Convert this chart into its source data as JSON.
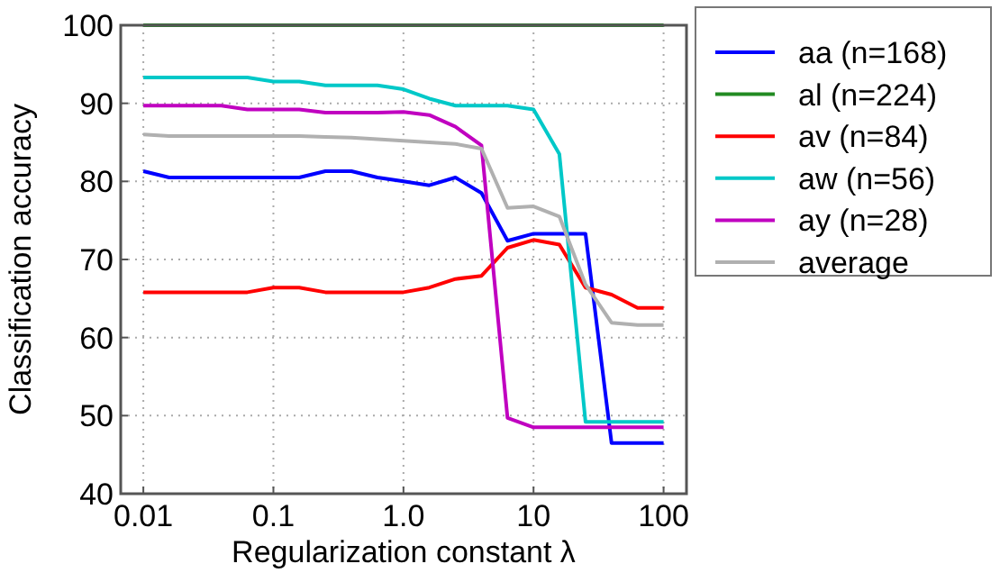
{
  "chart_data": {
    "type": "line",
    "xlabel": "Regularization constant λ",
    "ylabel": "Classification accuracy",
    "x": [
      0.01,
      0.0158,
      0.0251,
      0.0398,
      0.0631,
      0.1,
      0.158,
      0.251,
      0.398,
      0.631,
      1,
      1.58,
      2.51,
      3.98,
      6.31,
      10,
      15.8,
      25.1,
      39.8,
      63.1,
      100
    ],
    "log": "x",
    "xlim": [
      0.0067,
      150
    ],
    "ylim": [
      40,
      100
    ],
    "xticks": [
      0.01,
      0.1,
      {
        "value": 1,
        "label": "1.0"
      },
      10,
      100
    ],
    "yticks": [
      40,
      50,
      60,
      70,
      80,
      90,
      100
    ],
    "grid": true,
    "legend": "right",
    "line_style": "solid",
    "marker": "none",
    "series": [
      {
        "name": "aa (n=168)",
        "color": "#0000ff",
        "values": [
          81.3,
          80.5,
          80.5,
          80.5,
          80.5,
          80.5,
          80.5,
          81.3,
          81.3,
          80.5,
          80,
          79.5,
          80.5,
          78.5,
          72.4,
          73.3,
          73.3,
          73.3,
          46.5,
          46.5,
          46.5
        ]
      },
      {
        "name": "al (n=224)",
        "color": "#228b22",
        "values": [
          100,
          100,
          100,
          100,
          100,
          100,
          100,
          100,
          100,
          100,
          100,
          100,
          100,
          100,
          100,
          100,
          100,
          100,
          100,
          100,
          100
        ]
      },
      {
        "name": "av (n=84)",
        "color": "#ff0000",
        "values": [
          65.8,
          65.8,
          65.8,
          65.8,
          65.8,
          66.4,
          66.4,
          65.8,
          65.8,
          65.8,
          65.8,
          66.4,
          67.5,
          67.9,
          71.5,
          72.5,
          71.9,
          66.4,
          65.5,
          63.8,
          63.8
        ]
      },
      {
        "name": "aw (n=56)",
        "color": "#00c8c8",
        "values": [
          93.3,
          93.3,
          93.3,
          93.3,
          93.3,
          92.8,
          92.8,
          92.3,
          92.3,
          92.3,
          91.8,
          90.6,
          89.7,
          89.7,
          89.7,
          89.2,
          83.5,
          49.2,
          49.2,
          49.2,
          49.2
        ]
      },
      {
        "name": "ay (n=28)",
        "color": "#c000c0",
        "values": [
          89.7,
          89.7,
          89.7,
          89.7,
          89.2,
          89.2,
          89.2,
          88.8,
          88.8,
          88.8,
          88.9,
          88.5,
          87,
          84.6,
          49.7,
          48.5,
          48.5,
          48.5,
          48.5,
          48.5,
          48.5
        ]
      },
      {
        "name": "average",
        "color": "#b0b0b0",
        "values": [
          86,
          85.8,
          85.8,
          85.8,
          85.8,
          85.8,
          85.8,
          85.7,
          85.6,
          85.4,
          85.2,
          85,
          84.8,
          84.2,
          76.6,
          76.8,
          75.5,
          66.8,
          61.9,
          61.6,
          61.6
        ]
      }
    ]
  }
}
